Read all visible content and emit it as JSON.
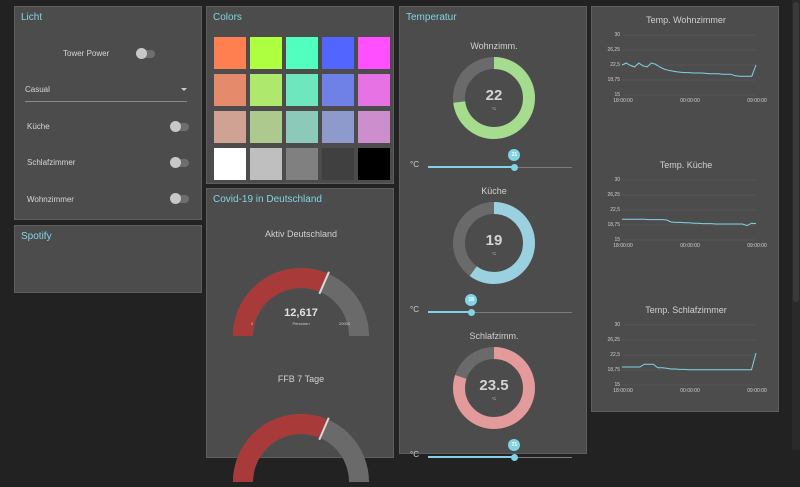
{
  "licht": {
    "title": "Licht",
    "tower_power_label": "Tower Power",
    "mode_value": "Casual",
    "rooms": [
      {
        "label": "Küche"
      },
      {
        "label": "Schlafzimmer"
      },
      {
        "label": "Wohnzimmer"
      }
    ]
  },
  "spotify": {
    "title": "Spotify"
  },
  "colors": {
    "title": "Colors",
    "swatches": [
      [
        "#ff7f50",
        "#adff3f",
        "#52ffbf",
        "#5365ff",
        "#ff4fff"
      ],
      [
        "#e58a6a",
        "#aee86d",
        "#6ee6be",
        "#6f80e6",
        "#e672e4"
      ],
      [
        "#cfa293",
        "#adc98e",
        "#8cc9b9",
        "#8e99cc",
        "#cc8ecc"
      ],
      [
        "#ffffff",
        "#bfbfbf",
        "#808080",
        "#404040",
        "#000000"
      ]
    ]
  },
  "covid": {
    "title": "Covid-19 in Deutschland",
    "gauge1": {
      "label": "Aktiv Deutschland",
      "value": "12,617",
      "unit": "Personen",
      "min": "0",
      "max": "20000",
      "value_num": 12617,
      "max_num": 20000
    },
    "gauge2": {
      "label": "FFB 7 Tage",
      "fraction": 0.63
    }
  },
  "temperatur": {
    "title": "Temperatur",
    "rooms": [
      {
        "name": "Wohnzimm.",
        "value": "22",
        "unit": "°C",
        "slider_label": "°C",
        "slider_value": "21",
        "gauge_fraction": 0.73,
        "ring_color": "#a5dc8e",
        "slider_fraction": 0.6
      },
      {
        "name": "Küche",
        "value": "19",
        "unit": "°C",
        "slider_label": "°C",
        "slider_value": "18",
        "gauge_fraction": 0.6,
        "ring_color": "#9ad0e0",
        "slider_fraction": 0.3
      },
      {
        "name": "Schlafzimm.",
        "value": "23.5",
        "unit": "°C",
        "slider_label": "°C",
        "slider_value": "21",
        "gauge_fraction": 0.8,
        "ring_color": "#e29a9a",
        "slider_fraction": 0.6
      }
    ]
  },
  "chart_data": [
    {
      "type": "line",
      "title": "Temp. Wohnzimmer",
      "x_ticks": [
        "18:00:00",
        "00:00:00",
        "09:00:00"
      ],
      "y_ticks": [
        "30",
        "26,25",
        "22,5",
        "18,75",
        "15"
      ],
      "ylim": [
        15,
        30
      ],
      "series": [
        {
          "values": [
            22.5,
            23,
            22.4,
            22,
            23,
            22.3,
            22,
            23,
            22.7,
            22,
            21.5,
            21.2,
            21,
            20.8,
            20.7,
            20.6,
            20.6,
            20.5,
            20.5,
            20.5,
            20.4,
            20.3,
            20.3,
            20.3,
            20.2,
            20.2,
            20.2,
            19.8,
            19.7,
            19.7,
            19.7,
            19.7,
            22.5
          ]
        }
      ]
    },
    {
      "type": "line",
      "title": "Temp. Küche",
      "x_ticks": [
        "18:00:00",
        "00:00:00",
        "09:00:00"
      ],
      "y_ticks": [
        "30",
        "26,25",
        "22,5",
        "18,75",
        "15"
      ],
      "ylim": [
        15,
        30
      ],
      "series": [
        {
          "values": [
            20.2,
            20.2,
            20.2,
            20.2,
            20.2,
            20.2,
            20.1,
            20.1,
            20.1,
            20.1,
            20,
            19.5,
            19.4,
            19.4,
            19.3,
            19.3,
            19.2,
            19.2,
            19.1,
            19.1,
            19.1,
            19,
            19,
            19,
            19,
            19,
            19,
            19,
            18.6,
            19.2,
            19.1
          ]
        }
      ]
    },
    {
      "type": "line",
      "title": "Temp. Schlafzimmer",
      "x_ticks": [
        "18:00:00",
        "00:00:00",
        "09:00:00"
      ],
      "y_ticks": [
        "30",
        "26,25",
        "22,5",
        "18,75",
        "15"
      ],
      "ylim": [
        15,
        30
      ],
      "series": [
        {
          "values": [
            19.5,
            19.5,
            19.5,
            19.5,
            19.5,
            20.2,
            20.2,
            20.2,
            19.3,
            19.3,
            19.2,
            19,
            19,
            18.9,
            18.9,
            18.8,
            18.8,
            18.8,
            18.8,
            18.8,
            18.8,
            18.8,
            18.8,
            18.8,
            18.8,
            18.8,
            18.8,
            18.8,
            18.8,
            18.8,
            23
          ]
        }
      ]
    }
  ]
}
